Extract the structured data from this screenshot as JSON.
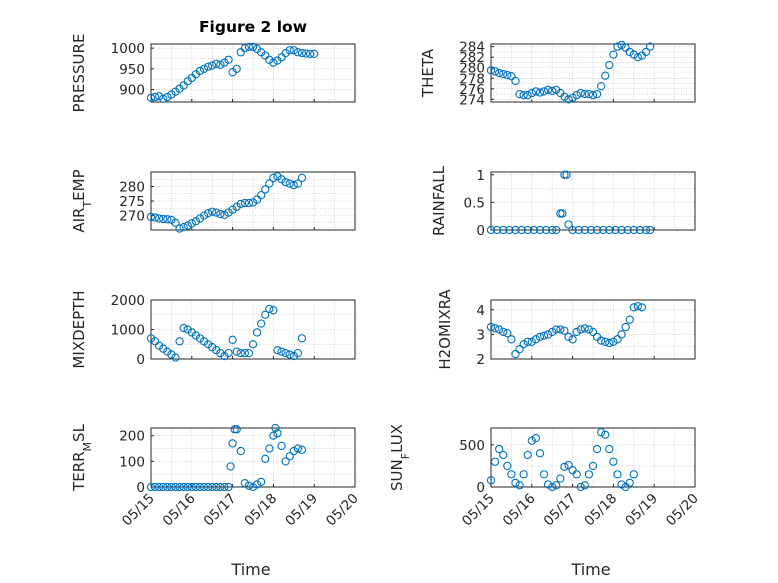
{
  "figure_title": "Figure 2 low",
  "x_axis_label": "Time",
  "x_tick_labels": [
    "05/15",
    "05/16",
    "05/17",
    "05/18",
    "05/19",
    "05/20"
  ],
  "marker_color": "#0072BD",
  "chart_data": [
    {
      "type": "scatter",
      "title": "Figure 2 low",
      "ylabel": "PRESSURE",
      "xlim": [
        0,
        5
      ],
      "ylim": [
        870,
        1010
      ],
      "yticks": [
        900,
        950,
        1000
      ],
      "grid": true,
      "points": [
        [
          0.0,
          880
        ],
        [
          0.1,
          882
        ],
        [
          0.2,
          884
        ],
        [
          0.3,
          878
        ],
        [
          0.4,
          882
        ],
        [
          0.5,
          888
        ],
        [
          0.6,
          895
        ],
        [
          0.7,
          902
        ],
        [
          0.8,
          910
        ],
        [
          0.9,
          920
        ],
        [
          1.0,
          928
        ],
        [
          1.1,
          937
        ],
        [
          1.2,
          945
        ],
        [
          1.3,
          950
        ],
        [
          1.4,
          955
        ],
        [
          1.5,
          958
        ],
        [
          1.6,
          962
        ],
        [
          1.7,
          960
        ],
        [
          1.8,
          965
        ],
        [
          1.9,
          972
        ],
        [
          2.0,
          942
        ],
        [
          2.1,
          950
        ],
        [
          2.2,
          990
        ],
        [
          2.3,
          1000
        ],
        [
          2.4,
          1003
        ],
        [
          2.5,
          1003
        ],
        [
          2.6,
          998
        ],
        [
          2.7,
          990
        ],
        [
          2.8,
          982
        ],
        [
          2.9,
          972
        ],
        [
          3.0,
          965
        ],
        [
          3.1,
          970
        ],
        [
          3.2,
          978
        ],
        [
          3.3,
          988
        ],
        [
          3.4,
          995
        ],
        [
          3.5,
          995
        ],
        [
          3.6,
          990
        ],
        [
          3.7,
          988
        ],
        [
          3.8,
          987
        ],
        [
          3.9,
          986
        ],
        [
          4.0,
          986
        ]
      ]
    },
    {
      "type": "scatter",
      "ylabel": "THETA",
      "xlim": [
        0,
        5
      ],
      "ylim": [
        273.5,
        284.5
      ],
      "yticks": [
        274,
        276,
        278,
        280,
        282,
        284
      ],
      "grid": true,
      "points": [
        [
          0.0,
          279.5
        ],
        [
          0.1,
          279.3
        ],
        [
          0.2,
          279.0
        ],
        [
          0.3,
          278.8
        ],
        [
          0.4,
          278.6
        ],
        [
          0.5,
          278.4
        ],
        [
          0.6,
          277.5
        ],
        [
          0.7,
          275.0
        ],
        [
          0.8,
          274.8
        ],
        [
          0.9,
          274.8
        ],
        [
          1.0,
          275.2
        ],
        [
          1.1,
          275.5
        ],
        [
          1.2,
          275.3
        ],
        [
          1.3,
          275.5
        ],
        [
          1.4,
          275.8
        ],
        [
          1.5,
          275.6
        ],
        [
          1.6,
          275.8
        ],
        [
          1.7,
          275.2
        ],
        [
          1.8,
          274.5
        ],
        [
          1.9,
          274.0
        ],
        [
          2.0,
          274.3
        ],
        [
          2.1,
          274.8
        ],
        [
          2.2,
          275.2
        ],
        [
          2.3,
          275.0
        ],
        [
          2.4,
          275.0
        ],
        [
          2.5,
          274.8
        ],
        [
          2.6,
          275.0
        ],
        [
          2.7,
          276.5
        ],
        [
          2.8,
          278.5
        ],
        [
          2.9,
          280.5
        ],
        [
          3.0,
          282.5
        ],
        [
          3.1,
          284.0
        ],
        [
          3.2,
          284.3
        ],
        [
          3.3,
          283.8
        ],
        [
          3.4,
          283.0
        ],
        [
          3.5,
          282.5
        ],
        [
          3.6,
          282.0
        ],
        [
          3.7,
          282.3
        ],
        [
          3.8,
          283.0
        ],
        [
          3.9,
          284.0
        ]
      ]
    },
    {
      "type": "scatter",
      "ylabel": "AIR_TEMP",
      "xlim": [
        0,
        5
      ],
      "ylim": [
        265,
        285
      ],
      "yticks": [
        270,
        275,
        280
      ],
      "grid": true,
      "points": [
        [
          0.0,
          269.5
        ],
        [
          0.1,
          269.3
        ],
        [
          0.2,
          269.0
        ],
        [
          0.3,
          268.8
        ],
        [
          0.4,
          268.7
        ],
        [
          0.5,
          268.5
        ],
        [
          0.6,
          267.5
        ],
        [
          0.7,
          265.5
        ],
        [
          0.8,
          266.0
        ],
        [
          0.9,
          266.5
        ],
        [
          1.0,
          267.3
        ],
        [
          1.1,
          268.0
        ],
        [
          1.2,
          269.0
        ],
        [
          1.3,
          270.0
        ],
        [
          1.4,
          270.8
        ],
        [
          1.5,
          271.3
        ],
        [
          1.6,
          271.0
        ],
        [
          1.7,
          270.5
        ],
        [
          1.8,
          270.2
        ],
        [
          1.9,
          271.0
        ],
        [
          2.0,
          272.0
        ],
        [
          2.1,
          273.0
        ],
        [
          2.2,
          274.0
        ],
        [
          2.3,
          274.3
        ],
        [
          2.4,
          274.3
        ],
        [
          2.5,
          274.5
        ],
        [
          2.6,
          275.5
        ],
        [
          2.7,
          277.0
        ],
        [
          2.8,
          279.0
        ],
        [
          2.9,
          281.0
        ],
        [
          3.0,
          283.0
        ],
        [
          3.1,
          283.5
        ],
        [
          3.2,
          282.5
        ],
        [
          3.3,
          281.5
        ],
        [
          3.4,
          281.0
        ],
        [
          3.5,
          280.5
        ],
        [
          3.6,
          281.0
        ],
        [
          3.7,
          283.0
        ]
      ]
    },
    {
      "type": "scatter",
      "ylabel": "RAINFALL",
      "xlim": [
        0,
        5
      ],
      "ylim": [
        0,
        1.05
      ],
      "yticks": [
        0,
        0.5,
        1
      ],
      "grid": true,
      "points": [
        [
          0.0,
          0
        ],
        [
          0.15,
          0
        ],
        [
          0.3,
          0
        ],
        [
          0.45,
          0
        ],
        [
          0.6,
          0
        ],
        [
          0.75,
          0
        ],
        [
          0.9,
          0
        ],
        [
          1.05,
          0
        ],
        [
          1.2,
          0
        ],
        [
          1.35,
          0
        ],
        [
          1.5,
          0
        ],
        [
          1.6,
          0
        ],
        [
          1.7,
          0.3
        ],
        [
          1.75,
          0.3
        ],
        [
          1.8,
          1.0
        ],
        [
          1.85,
          1.0
        ],
        [
          1.9,
          0.1
        ],
        [
          2.0,
          0
        ],
        [
          2.15,
          0
        ],
        [
          2.3,
          0
        ],
        [
          2.45,
          0
        ],
        [
          2.6,
          0
        ],
        [
          2.75,
          0
        ],
        [
          2.9,
          0
        ],
        [
          3.05,
          0
        ],
        [
          3.2,
          0
        ],
        [
          3.35,
          0
        ],
        [
          3.5,
          0
        ],
        [
          3.65,
          0
        ],
        [
          3.8,
          0
        ],
        [
          3.9,
          0
        ]
      ]
    },
    {
      "type": "scatter",
      "ylabel": "MIXDEPTH",
      "xlim": [
        0,
        5
      ],
      "ylim": [
        0,
        2000
      ],
      "yticks": [
        0,
        1000,
        2000
      ],
      "grid": true,
      "points": [
        [
          0.0,
          700
        ],
        [
          0.1,
          600
        ],
        [
          0.2,
          450
        ],
        [
          0.3,
          350
        ],
        [
          0.4,
          250
        ],
        [
          0.5,
          150
        ],
        [
          0.6,
          50
        ],
        [
          0.7,
          600
        ],
        [
          0.8,
          1050
        ],
        [
          0.9,
          1000
        ],
        [
          1.0,
          900
        ],
        [
          1.1,
          800
        ],
        [
          1.2,
          700
        ],
        [
          1.3,
          600
        ],
        [
          1.4,
          500
        ],
        [
          1.5,
          400
        ],
        [
          1.6,
          300
        ],
        [
          1.7,
          200
        ],
        [
          1.8,
          100
        ],
        [
          1.9,
          200
        ],
        [
          2.0,
          650
        ],
        [
          2.1,
          250
        ],
        [
          2.2,
          200
        ],
        [
          2.3,
          200
        ],
        [
          2.4,
          200
        ],
        [
          2.5,
          500
        ],
        [
          2.6,
          900
        ],
        [
          2.7,
          1200
        ],
        [
          2.8,
          1500
        ],
        [
          2.9,
          1700
        ],
        [
          3.0,
          1650
        ],
        [
          3.1,
          300
        ],
        [
          3.2,
          250
        ],
        [
          3.3,
          200
        ],
        [
          3.4,
          150
        ],
        [
          3.5,
          100
        ],
        [
          3.6,
          200
        ],
        [
          3.7,
          700
        ]
      ]
    },
    {
      "type": "scatter",
      "ylabel": "H2OMIXRA",
      "xlim": [
        0,
        5
      ],
      "ylim": [
        2,
        4.4
      ],
      "yticks": [
        2,
        3,
        4
      ],
      "grid": true,
      "points": [
        [
          0.0,
          3.3
        ],
        [
          0.1,
          3.25
        ],
        [
          0.2,
          3.2
        ],
        [
          0.3,
          3.1
        ],
        [
          0.4,
          3.05
        ],
        [
          0.5,
          2.8
        ],
        [
          0.6,
          2.2
        ],
        [
          0.7,
          2.4
        ],
        [
          0.8,
          2.6
        ],
        [
          0.9,
          2.7
        ],
        [
          1.0,
          2.7
        ],
        [
          1.1,
          2.8
        ],
        [
          1.2,
          2.9
        ],
        [
          1.3,
          2.95
        ],
        [
          1.4,
          3.0
        ],
        [
          1.5,
          3.1
        ],
        [
          1.6,
          3.2
        ],
        [
          1.7,
          3.2
        ],
        [
          1.8,
          3.15
        ],
        [
          1.9,
          2.9
        ],
        [
          2.0,
          2.8
        ],
        [
          2.1,
          3.1
        ],
        [
          2.2,
          3.2
        ],
        [
          2.3,
          3.25
        ],
        [
          2.4,
          3.2
        ],
        [
          2.5,
          3.1
        ],
        [
          2.6,
          2.9
        ],
        [
          2.7,
          2.75
        ],
        [
          2.8,
          2.7
        ],
        [
          2.9,
          2.65
        ],
        [
          3.0,
          2.7
        ],
        [
          3.1,
          2.8
        ],
        [
          3.2,
          3.0
        ],
        [
          3.3,
          3.3
        ],
        [
          3.4,
          3.6
        ],
        [
          3.5,
          4.1
        ],
        [
          3.6,
          4.15
        ],
        [
          3.7,
          4.1
        ]
      ]
    },
    {
      "type": "scatter",
      "ylabel": "TERR_MSL",
      "xlim": [
        0,
        5
      ],
      "ylim": [
        0,
        230
      ],
      "yticks": [
        0,
        100,
        200
      ],
      "grid": true,
      "points": [
        [
          0.0,
          0
        ],
        [
          0.1,
          0
        ],
        [
          0.2,
          0
        ],
        [
          0.3,
          0
        ],
        [
          0.4,
          0
        ],
        [
          0.5,
          0
        ],
        [
          0.6,
          0
        ],
        [
          0.7,
          0
        ],
        [
          0.8,
          0
        ],
        [
          0.9,
          0
        ],
        [
          1.0,
          0
        ],
        [
          1.1,
          0
        ],
        [
          1.2,
          0
        ],
        [
          1.3,
          0
        ],
        [
          1.4,
          0
        ],
        [
          1.5,
          0
        ],
        [
          1.6,
          0
        ],
        [
          1.7,
          0
        ],
        [
          1.8,
          0
        ],
        [
          1.9,
          0
        ],
        [
          1.95,
          80
        ],
        [
          2.0,
          170
        ],
        [
          2.05,
          225
        ],
        [
          2.1,
          225
        ],
        [
          2.2,
          140
        ],
        [
          2.3,
          15
        ],
        [
          2.4,
          5
        ],
        [
          2.5,
          0
        ],
        [
          2.6,
          10
        ],
        [
          2.7,
          20
        ],
        [
          2.8,
          110
        ],
        [
          2.9,
          150
        ],
        [
          3.0,
          200
        ],
        [
          3.05,
          230
        ],
        [
          3.1,
          210
        ],
        [
          3.2,
          160
        ],
        [
          3.3,
          100
        ],
        [
          3.4,
          120
        ],
        [
          3.5,
          140
        ],
        [
          3.6,
          150
        ],
        [
          3.7,
          145
        ]
      ]
    },
    {
      "type": "scatter",
      "ylabel": "SUN_FLUX",
      "xlim": [
        0,
        5
      ],
      "ylim": [
        0,
        700
      ],
      "yticks": [
        0,
        500
      ],
      "grid": true,
      "points": [
        [
          0.0,
          80
        ],
        [
          0.1,
          300
        ],
        [
          0.2,
          450
        ],
        [
          0.3,
          380
        ],
        [
          0.4,
          250
        ],
        [
          0.5,
          150
        ],
        [
          0.6,
          50
        ],
        [
          0.7,
          20
        ],
        [
          0.8,
          150
        ],
        [
          0.9,
          380
        ],
        [
          1.0,
          550
        ],
        [
          1.1,
          580
        ],
        [
          1.2,
          400
        ],
        [
          1.3,
          150
        ],
        [
          1.4,
          30
        ],
        [
          1.5,
          0
        ],
        [
          1.6,
          20
        ],
        [
          1.7,
          100
        ],
        [
          1.8,
          240
        ],
        [
          1.9,
          260
        ],
        [
          2.0,
          200
        ],
        [
          2.1,
          150
        ],
        [
          2.2,
          0
        ],
        [
          2.3,
          20
        ],
        [
          2.4,
          150
        ],
        [
          2.5,
          250
        ],
        [
          2.6,
          450
        ],
        [
          2.7,
          650
        ],
        [
          2.8,
          620
        ],
        [
          2.9,
          450
        ],
        [
          3.0,
          300
        ],
        [
          3.1,
          150
        ],
        [
          3.2,
          30
        ],
        [
          3.3,
          0
        ],
        [
          3.4,
          50
        ],
        [
          3.5,
          150
        ]
      ]
    }
  ]
}
